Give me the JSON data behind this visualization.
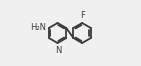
{
  "bg_color": "#f0f0f0",
  "line_color": "#3a3a3a",
  "text_color": "#3a3a3a",
  "lw": 1.3,
  "pcx": 0.3,
  "pcy": 0.5,
  "pr": 0.155,
  "bcx": 0.68,
  "bcy": 0.5,
  "br": 0.155,
  "nh2_label": "H₂N",
  "f_label": "F",
  "n_label": "N",
  "font_size": 6.0
}
